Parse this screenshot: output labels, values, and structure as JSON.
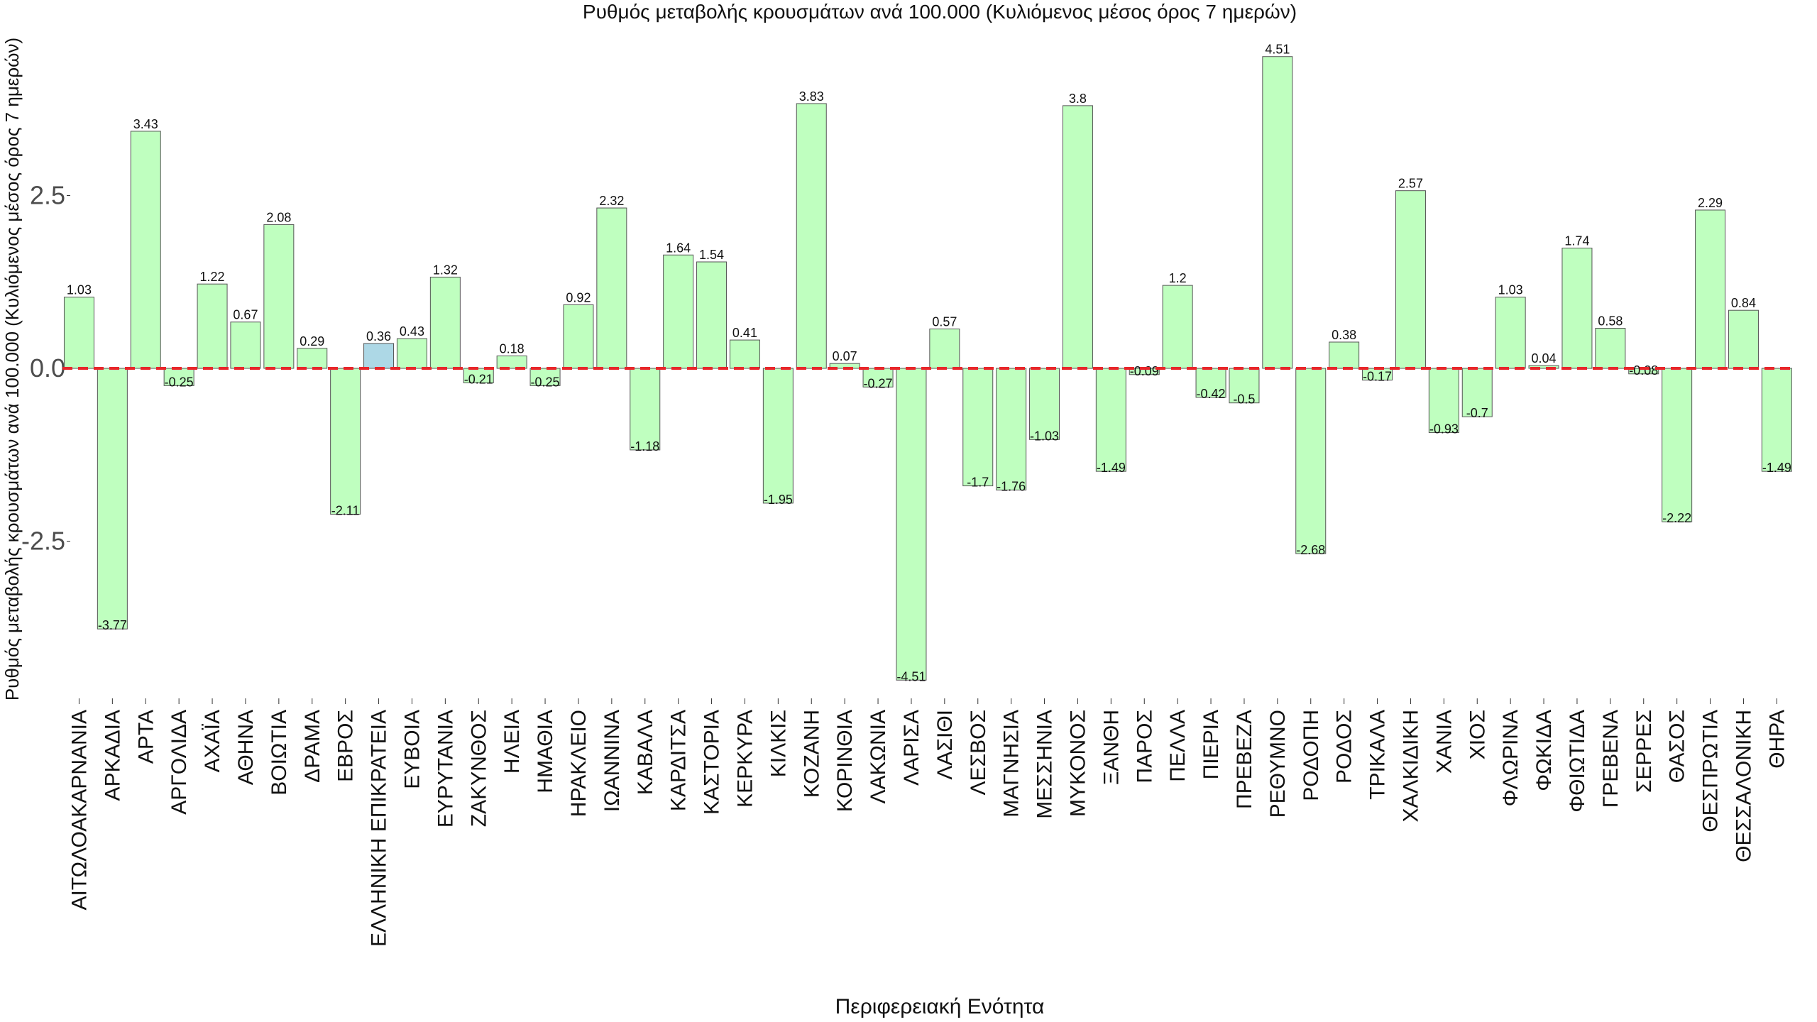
{
  "chart_data": {
    "type": "bar",
    "title": "Ρυθμός μεταβολής κρουσμάτων ανά 100.000 (Κυλιόμενος μέσος όρος 7 ημερών)",
    "xlabel": "Περιφερειακή Ενότητα",
    "ylabel": "Ρυθμός μεταβολής κρουσμάτων ανά 100.000 (Κυλιόμενος μέσος όρος 7 ημερών)",
    "ylim": [
      -4.6,
      4.6
    ],
    "yticks": [
      -2.5,
      0,
      2.5
    ],
    "ytick_labels": [
      "-2.5",
      "0.0",
      "2.5"
    ],
    "reference_line": {
      "y": 0,
      "style": "dashed",
      "color": "#e8262a"
    },
    "colors": {
      "bar": "#bfffbf",
      "highlight": "#add8e6",
      "edge": "#555555"
    },
    "highlight_category": "ΕΛΛΗΝΙΚΗ ΕΠΙΚΡΑΤΕΙΑ",
    "categories": [
      "ΑΙΤΩΛΟΑΚΑΡΝΑΝΙΑ",
      "ΑΡΚΑΔΙΑ",
      "ΑΡΤΑ",
      "ΑΡΓΟΛΙΔΑ",
      "ΑΧΑΪΑ",
      "ΑΘΗΝΑ",
      "ΒΟΙΩΤΙΑ",
      "ΔΡΑΜΑ",
      "ΕΒΡΟΣ",
      "ΕΛΛΗΝΙΚΗ ΕΠΙΚΡΑΤΕΙΑ",
      "ΕΥΒΟΙΑ",
      "ΕΥΡΥΤΑΝΙΑ",
      "ΖΑΚΥΝΘΟΣ",
      "ΗΛΕΙΑ",
      "ΗΜΑΘΙΑ",
      "ΗΡΑΚΛΕΙΟ",
      "ΙΩΑΝΝΙΝΑ",
      "ΚΑΒΑΛΑ",
      "ΚΑΡΔΙΤΣΑ",
      "ΚΑΣΤΟΡΙΑ",
      "ΚΕΡΚΥΡΑ",
      "ΚΙΛΚΙΣ",
      "ΚΟΖΑΝΗ",
      "ΚΟΡΙΝΘΙΑ",
      "ΛΑΚΩΝΙΑ",
      "ΛΑΡΙΣΑ",
      "ΛΑΣΙΘΙ",
      "ΛΕΣΒΟΣ",
      "ΜΑΓΝΗΣΙΑ",
      "ΜΕΣΣΗΝΙΑ",
      "ΜΥΚΟΝΟΣ",
      "ΞΑΝΘΗ",
      "ΠΑΡΟΣ",
      "ΠΕΛΛΑ",
      "ΠΙΕΡΙΑ",
      "ΠΡΕΒΕΖΑ",
      "ΡΕΘΥΜΝΟ",
      "ΡΟΔΟΠΗ",
      "ΡΟΔΟΣ",
      "ΤΡΙΚΑΛΑ",
      "ΧΑΛΚΙΔΙΚΗ",
      "ΧΑΝΙΑ",
      "ΧΙΟΣ",
      "ΦΛΩΡΙΝΑ",
      "ΦΩΚΙΔΑ",
      "ΦΘΙΩΤΙΔΑ",
      "ΓΡΕΒΕΝΑ",
      "ΣΕΡΡΕΣ",
      "ΘΑΣΟΣ",
      "ΘΕΣΠΡΩΤΙΑ",
      "ΘΕΣΣΑΛΟΝΙΚΗ",
      "ΘΗΡΑ"
    ],
    "values": [
      1.03,
      -3.77,
      3.43,
      -0.25,
      1.22,
      0.67,
      2.08,
      0.29,
      -2.11,
      0.36,
      0.43,
      1.32,
      -0.21,
      0.18,
      -0.25,
      0.92,
      2.32,
      -1.18,
      1.64,
      1.54,
      0.41,
      -1.95,
      3.83,
      0.07,
      -0.27,
      -4.51,
      0.57,
      -1.7,
      -1.76,
      -1.03,
      3.8,
      -1.49,
      -0.09,
      1.2,
      -0.42,
      -0.5,
      4.51,
      -2.68,
      0.38,
      -0.17,
      2.57,
      -0.93,
      -0.7,
      1.03,
      0.04,
      1.74,
      0.58,
      -0.08,
      -2.22,
      2.29,
      0.84,
      -1.49
    ],
    "value_labels": [
      "1.03",
      "-3.77",
      "3.43",
      "-0.25",
      "1.22",
      "0.67",
      "2.08",
      "0.29",
      "-2.11",
      "0.36",
      "0.43",
      "1.32",
      "-0.21",
      "0.18",
      "-0.25",
      "0.92",
      "2.32",
      "-1.18",
      "1.64",
      "1.54",
      "0.41",
      "-1.95",
      "3.83",
      "0.07",
      "-0.27",
      "-4.51",
      "0.57",
      "-1.7",
      "-1.76",
      "-1.03",
      "3.8",
      "-1.49",
      "-0.09",
      "1.2",
      "-0.42",
      "-0.5",
      "4.51",
      "-2.68",
      "0.38",
      "-0.17",
      "2.57",
      "-0.93",
      "-0.7",
      "1.03",
      "0.04",
      "1.74",
      "0.58",
      "-0.08",
      "-2.22",
      "2.29",
      "0.84",
      "-1.49"
    ]
  }
}
